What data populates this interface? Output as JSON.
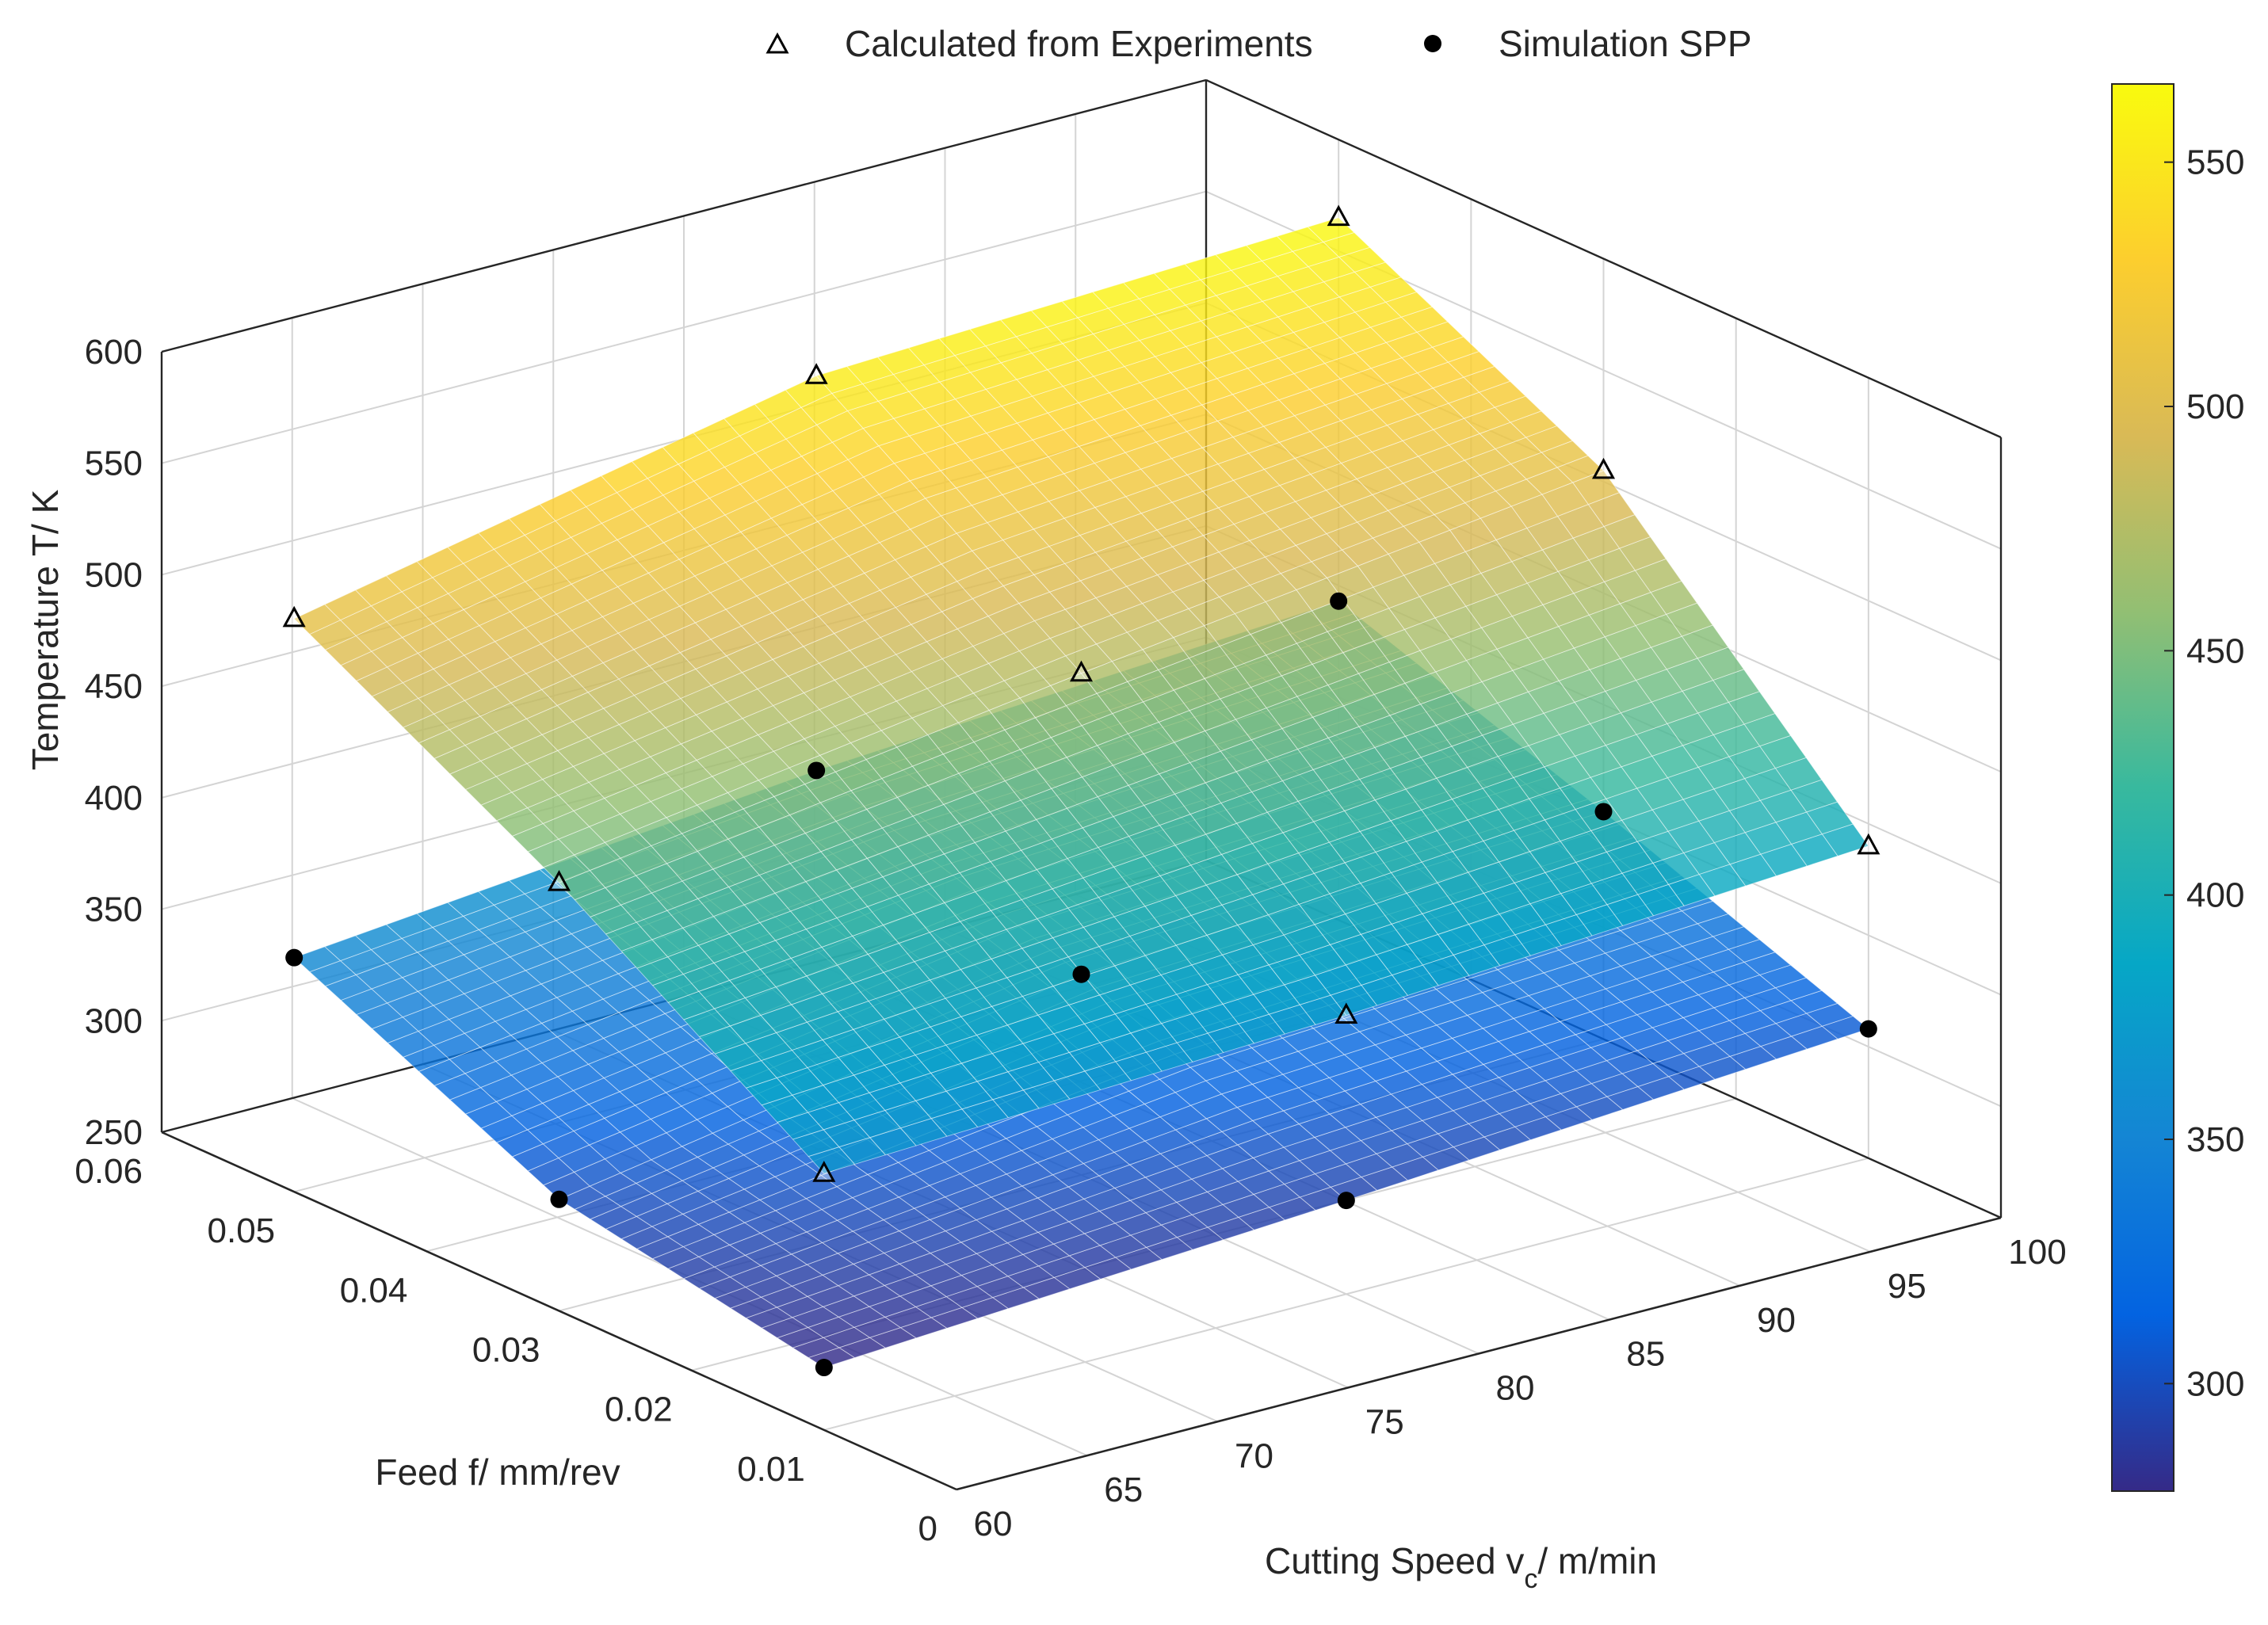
{
  "chart_data": {
    "type": "scatter3d-surface",
    "title": "",
    "legend": {
      "placement": "top-center",
      "entries": [
        {
          "marker": "triangle-open",
          "label": "Calculated from Experiments"
        },
        {
          "marker": "circle-filled",
          "label": "Simulation SPP"
        }
      ]
    },
    "axes": {
      "x": {
        "label_main": "Cutting Speed v",
        "label_sub": "c",
        "label_tail": "/ m/min",
        "range": [
          60,
          100
        ],
        "ticks": [
          "60",
          "65",
          "70",
          "75",
          "80",
          "85",
          "90",
          "95",
          "100"
        ]
      },
      "y": {
        "label": "Feed f/ mm/rev",
        "range": [
          0,
          0.06
        ],
        "ticks": [
          "0",
          "0.01",
          "0.02",
          "0.03",
          "0.04",
          "0.05",
          "0.06"
        ]
      },
      "z": {
        "label": "Temperature T/ K",
        "range": [
          250,
          600
        ],
        "ticks": [
          "250",
          "300",
          "350",
          "400",
          "450",
          "500",
          "550",
          "600"
        ]
      }
    },
    "grid": true,
    "colorbar": {
      "range": [
        278,
        566
      ],
      "ticks": [
        "300",
        "350",
        "400",
        "450",
        "500",
        "550"
      ],
      "colormap": "parula"
    },
    "series": [
      {
        "name": "Calculated from Experiments",
        "points": [
          {
            "v": 60,
            "f": 0.01,
            "T": 365
          },
          {
            "v": 60,
            "f": 0.03,
            "T": 442
          },
          {
            "v": 60,
            "f": 0.05,
            "T": 507
          },
          {
            "v": 80,
            "f": 0.01,
            "T": 375
          },
          {
            "v": 80,
            "f": 0.03,
            "T": 475
          },
          {
            "v": 80,
            "f": 0.05,
            "T": 555
          },
          {
            "v": 100,
            "f": 0.01,
            "T": 390
          },
          {
            "v": 100,
            "f": 0.03,
            "T": 505
          },
          {
            "v": 100,
            "f": 0.05,
            "T": 565
          }
        ]
      },
      {
        "name": "Simulation SPP",
        "points": [
          {
            "v": 60,
            "f": 0.01,
            "T": 278
          },
          {
            "v": 60,
            "f": 0.03,
            "T": 300
          },
          {
            "v": 60,
            "f": 0.05,
            "T": 355
          },
          {
            "v": 80,
            "f": 0.01,
            "T": 292
          },
          {
            "v": 80,
            "f": 0.03,
            "T": 340
          },
          {
            "v": 80,
            "f": 0.05,
            "T": 378
          },
          {
            "v": 100,
            "f": 0.01,
            "T": 308
          },
          {
            "v": 100,
            "f": 0.03,
            "T": 352
          },
          {
            "v": 100,
            "f": 0.05,
            "T": 393
          }
        ]
      }
    ]
  }
}
